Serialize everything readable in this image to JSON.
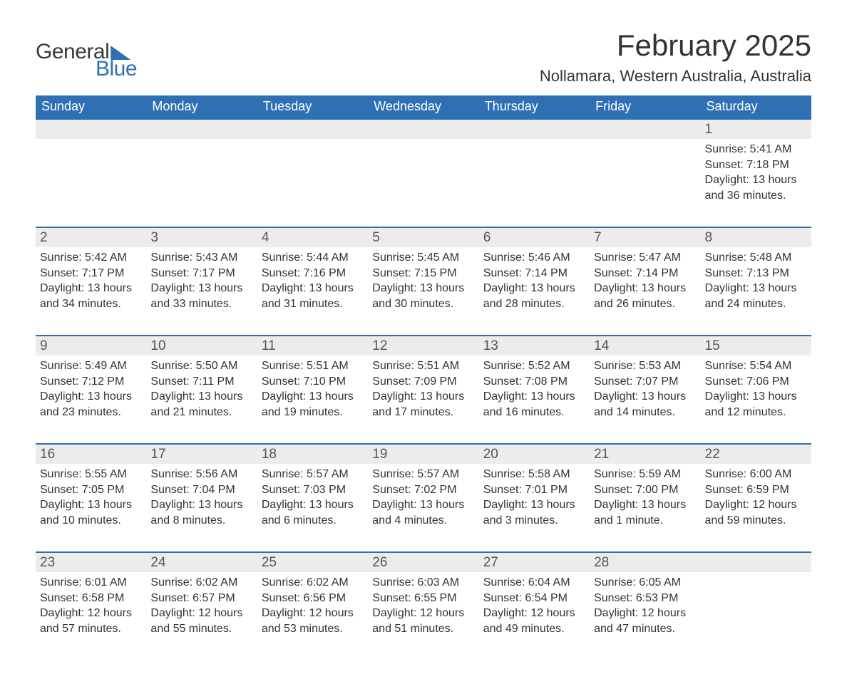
{
  "logo": {
    "word1": "General",
    "word2": "Blue"
  },
  "title": "February 2025",
  "location": "Nollamara, Western Australia, Australia",
  "colors": {
    "header_bg": "#2f6fb4",
    "header_text": "#ffffff",
    "daynum_bg": "#ececec",
    "row_border": "#2f6fb4",
    "text": "#333333",
    "logo_gray": "#3a3a3a",
    "logo_blue": "#2f6fb4",
    "page_bg": "#ffffff"
  },
  "fonts": {
    "title_size_pt": 32,
    "location_size_pt": 17,
    "header_size_pt": 14,
    "daynum_size_pt": 14,
    "detail_size_pt": 12
  },
  "day_headers": [
    "Sunday",
    "Monday",
    "Tuesday",
    "Wednesday",
    "Thursday",
    "Friday",
    "Saturday"
  ],
  "weeks": [
    [
      null,
      null,
      null,
      null,
      null,
      null,
      {
        "n": "1",
        "sunrise": "5:41 AM",
        "sunset": "7:18 PM",
        "daylight": "13 hours and 36 minutes."
      }
    ],
    [
      {
        "n": "2",
        "sunrise": "5:42 AM",
        "sunset": "7:17 PM",
        "daylight": "13 hours and 34 minutes."
      },
      {
        "n": "3",
        "sunrise": "5:43 AM",
        "sunset": "7:17 PM",
        "daylight": "13 hours and 33 minutes."
      },
      {
        "n": "4",
        "sunrise": "5:44 AM",
        "sunset": "7:16 PM",
        "daylight": "13 hours and 31 minutes."
      },
      {
        "n": "5",
        "sunrise": "5:45 AM",
        "sunset": "7:15 PM",
        "daylight": "13 hours and 30 minutes."
      },
      {
        "n": "6",
        "sunrise": "5:46 AM",
        "sunset": "7:14 PM",
        "daylight": "13 hours and 28 minutes."
      },
      {
        "n": "7",
        "sunrise": "5:47 AM",
        "sunset": "7:14 PM",
        "daylight": "13 hours and 26 minutes."
      },
      {
        "n": "8",
        "sunrise": "5:48 AM",
        "sunset": "7:13 PM",
        "daylight": "13 hours and 24 minutes."
      }
    ],
    [
      {
        "n": "9",
        "sunrise": "5:49 AM",
        "sunset": "7:12 PM",
        "daylight": "13 hours and 23 minutes."
      },
      {
        "n": "10",
        "sunrise": "5:50 AM",
        "sunset": "7:11 PM",
        "daylight": "13 hours and 21 minutes."
      },
      {
        "n": "11",
        "sunrise": "5:51 AM",
        "sunset": "7:10 PM",
        "daylight": "13 hours and 19 minutes."
      },
      {
        "n": "12",
        "sunrise": "5:51 AM",
        "sunset": "7:09 PM",
        "daylight": "13 hours and 17 minutes."
      },
      {
        "n": "13",
        "sunrise": "5:52 AM",
        "sunset": "7:08 PM",
        "daylight": "13 hours and 16 minutes."
      },
      {
        "n": "14",
        "sunrise": "5:53 AM",
        "sunset": "7:07 PM",
        "daylight": "13 hours and 14 minutes."
      },
      {
        "n": "15",
        "sunrise": "5:54 AM",
        "sunset": "7:06 PM",
        "daylight": "13 hours and 12 minutes."
      }
    ],
    [
      {
        "n": "16",
        "sunrise": "5:55 AM",
        "sunset": "7:05 PM",
        "daylight": "13 hours and 10 minutes."
      },
      {
        "n": "17",
        "sunrise": "5:56 AM",
        "sunset": "7:04 PM",
        "daylight": "13 hours and 8 minutes."
      },
      {
        "n": "18",
        "sunrise": "5:57 AM",
        "sunset": "7:03 PM",
        "daylight": "13 hours and 6 minutes."
      },
      {
        "n": "19",
        "sunrise": "5:57 AM",
        "sunset": "7:02 PM",
        "daylight": "13 hours and 4 minutes."
      },
      {
        "n": "20",
        "sunrise": "5:58 AM",
        "sunset": "7:01 PM",
        "daylight": "13 hours and 3 minutes."
      },
      {
        "n": "21",
        "sunrise": "5:59 AM",
        "sunset": "7:00 PM",
        "daylight": "13 hours and 1 minute."
      },
      {
        "n": "22",
        "sunrise": "6:00 AM",
        "sunset": "6:59 PM",
        "daylight": "12 hours and 59 minutes."
      }
    ],
    [
      {
        "n": "23",
        "sunrise": "6:01 AM",
        "sunset": "6:58 PM",
        "daylight": "12 hours and 57 minutes."
      },
      {
        "n": "24",
        "sunrise": "6:02 AM",
        "sunset": "6:57 PM",
        "daylight": "12 hours and 55 minutes."
      },
      {
        "n": "25",
        "sunrise": "6:02 AM",
        "sunset": "6:56 PM",
        "daylight": "12 hours and 53 minutes."
      },
      {
        "n": "26",
        "sunrise": "6:03 AM",
        "sunset": "6:55 PM",
        "daylight": "12 hours and 51 minutes."
      },
      {
        "n": "27",
        "sunrise": "6:04 AM",
        "sunset": "6:54 PM",
        "daylight": "12 hours and 49 minutes."
      },
      {
        "n": "28",
        "sunrise": "6:05 AM",
        "sunset": "6:53 PM",
        "daylight": "12 hours and 47 minutes."
      },
      null
    ]
  ],
  "labels": {
    "sunrise_prefix": "Sunrise: ",
    "sunset_prefix": "Sunset: ",
    "daylight_prefix": "Daylight: "
  }
}
